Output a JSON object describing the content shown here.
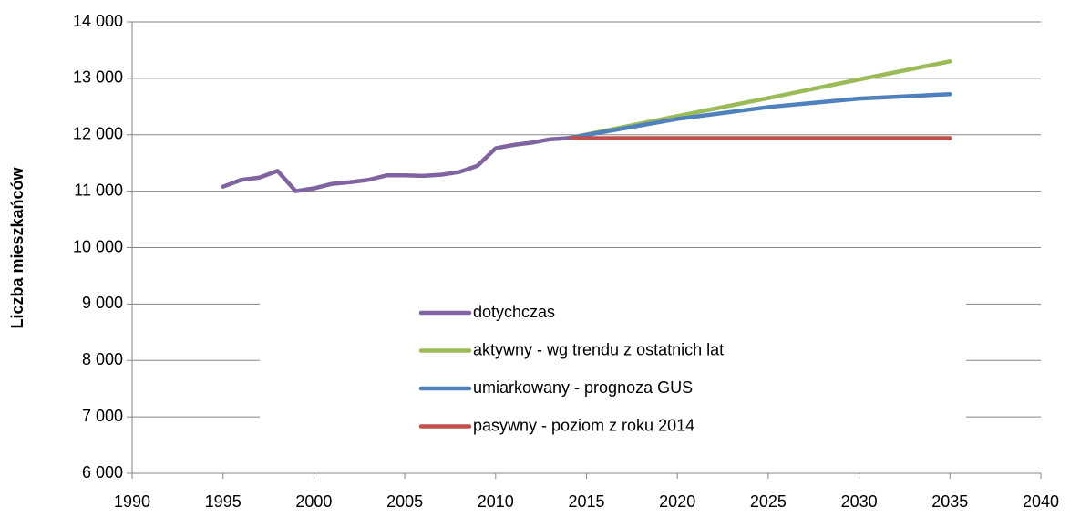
{
  "chart_data": {
    "type": "line",
    "y_label": "Liczba mieszkańców",
    "xlim": [
      1990,
      2040
    ],
    "xticks": [
      1990,
      1995,
      2000,
      2005,
      2010,
      2015,
      2020,
      2025,
      2030,
      2035,
      2040
    ],
    "ylim": [
      6000,
      14000
    ],
    "yticks": [
      {
        "value": 6000,
        "label": "6 000"
      },
      {
        "value": 7000,
        "label": "7 000"
      },
      {
        "value": 8000,
        "label": "8 000"
      },
      {
        "value": 9000,
        "label": "9 000"
      },
      {
        "value": 10000,
        "label": "10 000"
      },
      {
        "value": 11000,
        "label": "11 000"
      },
      {
        "value": 12000,
        "label": "12 000"
      },
      {
        "value": 13000,
        "label": "13 000"
      },
      {
        "value": 14000,
        "label": "14 000"
      }
    ],
    "grid": true,
    "legend": "center",
    "series": [
      {
        "name": "dotychczas",
        "color": "#8064a2",
        "x": [
          1995,
          1996,
          1997,
          1998,
          1999,
          2000,
          2001,
          2002,
          2003,
          2004,
          2005,
          2006,
          2007,
          2008,
          2009,
          2010,
          2011,
          2012,
          2013,
          2014
        ],
        "values": [
          11080,
          11200,
          11240,
          11360,
          11000,
          11050,
          11130,
          11160,
          11200,
          11280,
          11280,
          11270,
          11290,
          11340,
          11450,
          11760,
          11820,
          11860,
          11920,
          11940
        ]
      },
      {
        "name": "aktywny - wg trendu z ostatnich lat",
        "color": "#9bbb59",
        "x": [
          2014,
          2020,
          2025,
          2030,
          2035
        ],
        "values": [
          11940,
          12330,
          12650,
          12980,
          13300
        ]
      },
      {
        "name": "umiarkowany - prognoza GUS",
        "color": "#4f81bd",
        "x": [
          2014,
          2020,
          2025,
          2030,
          2035
        ],
        "values": [
          11940,
          12280,
          12490,
          12640,
          12720
        ]
      },
      {
        "name": "pasywny - poziom z roku 2014",
        "color": "#c0504d",
        "x": [
          2014,
          2035
        ],
        "values": [
          11940,
          11940
        ]
      }
    ]
  }
}
